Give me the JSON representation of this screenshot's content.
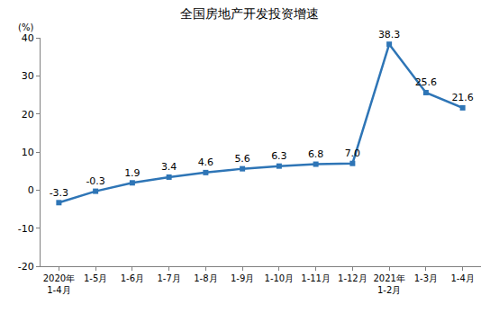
{
  "chart_data": {
    "type": "line",
    "title": "全国房地产开发投资增速",
    "y_label": "(%)",
    "categories": [
      "2020年\n1-4月",
      "1-5月",
      "1-6月",
      "1-7月",
      "1-8月",
      "1-9月",
      "1-10月",
      "1-11月",
      "1-12月",
      "2021年\n1-2月",
      "1-3月",
      "1-4月"
    ],
    "values": [
      -3.3,
      -0.3,
      1.9,
      3.4,
      4.6,
      5.6,
      6.3,
      6.8,
      7.0,
      38.3,
      25.6,
      21.6
    ],
    "value_labels": [
      "-3.3",
      "-0.3",
      "1.9",
      "3.4",
      "4.6",
      "5.6",
      "6.3",
      "6.8",
      "7.0",
      "38.3",
      "25.6",
      "21.6"
    ],
    "color": "#2e75b6",
    "marker": "square",
    "line_style": "solid",
    "data_labels": true,
    "ylim": [
      -20,
      40
    ],
    "yticks": [
      -20,
      -10,
      0,
      10,
      20,
      30,
      40
    ],
    "grid": false
  }
}
